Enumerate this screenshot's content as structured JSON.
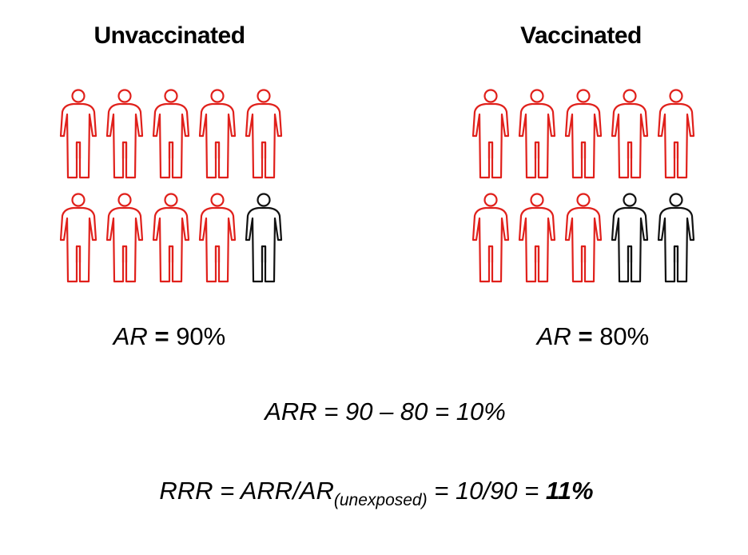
{
  "groups": [
    {
      "title": "Unvaccinated",
      "ar_symbol": "AR",
      "ar_equals": "=",
      "ar_value": "90%",
      "icons": [
        "red",
        "red",
        "red",
        "red",
        "red",
        "red",
        "red",
        "red",
        "red",
        "black"
      ]
    },
    {
      "title": "Vaccinated",
      "ar_symbol": "AR",
      "ar_equals": "=",
      "ar_value": "80%",
      "icons": [
        "red",
        "red",
        "red",
        "red",
        "red",
        "red",
        "red",
        "red",
        "black",
        "black"
      ]
    }
  ],
  "colors": {
    "red": "#e0201b",
    "black": "#111111"
  },
  "icon": "person-outline-icon",
  "arr_formula": "ARR = 90 – 80 = 10%",
  "rrr_formula": {
    "lhs": "RRR = ARR/AR",
    "subscript": "(unexposed)",
    "middle": " = 10/90 = ",
    "result": "11%"
  }
}
